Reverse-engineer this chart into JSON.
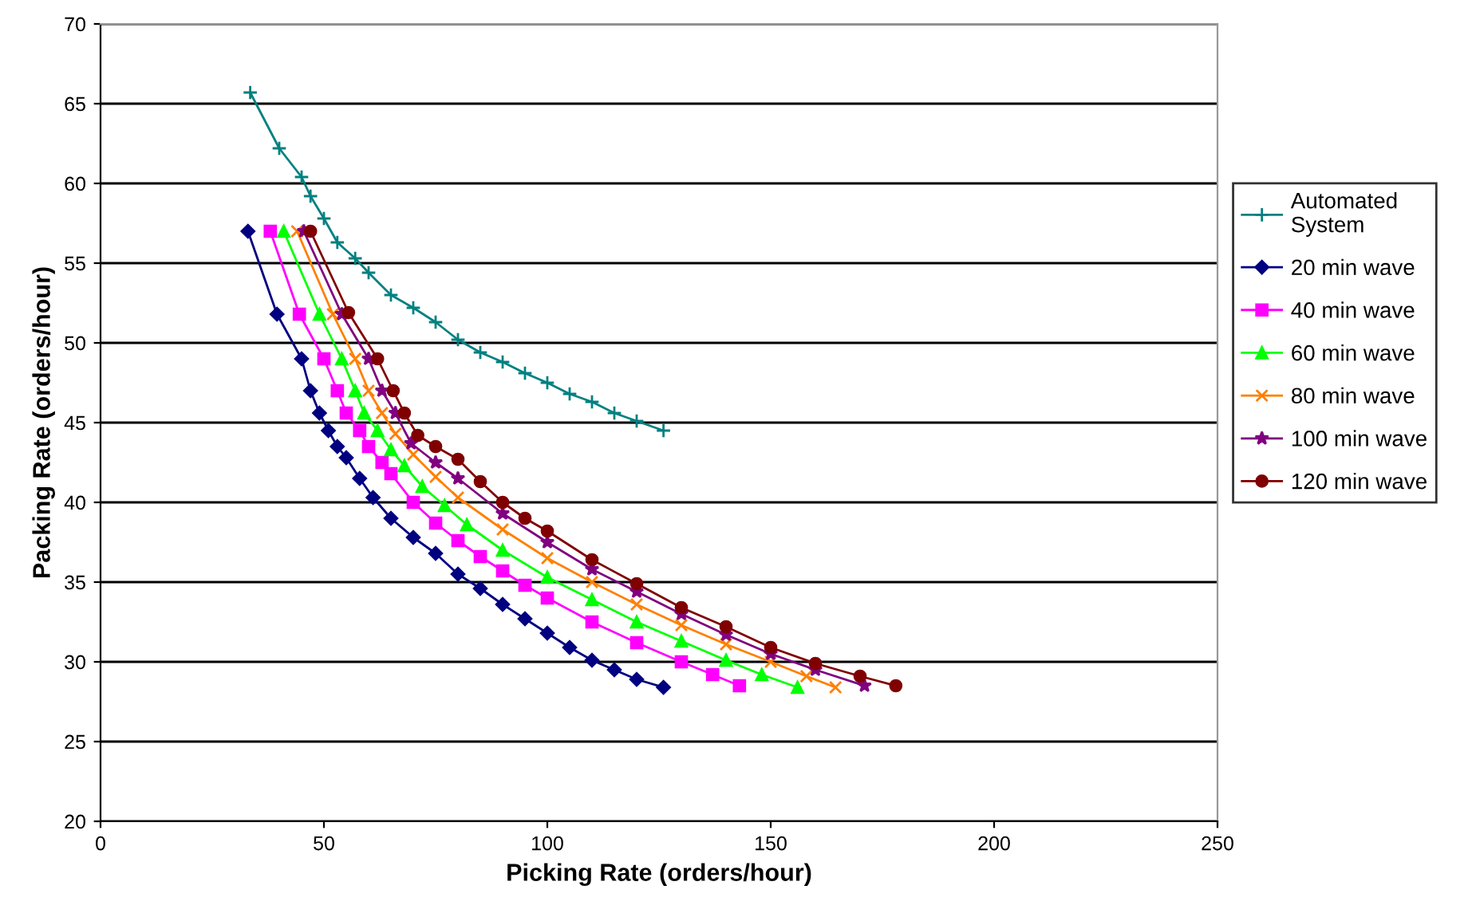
{
  "chart_data": {
    "type": "line",
    "xlabel": "Picking Rate (orders/hour)",
    "ylabel": "Packing Rate (orders/hour)",
    "xlim": [
      0,
      250
    ],
    "xticks": [
      0,
      50,
      100,
      150,
      200,
      250
    ],
    "ylim": [
      20,
      70
    ],
    "yticks": [
      20,
      25,
      30,
      35,
      40,
      45,
      50,
      55,
      60,
      65,
      70
    ],
    "grid": "y",
    "legend": "right",
    "series": [
      {
        "name": "Automated System",
        "color": "#008080",
        "marker": "plus",
        "x": [
          33.5,
          40,
          45,
          47,
          50,
          53,
          57,
          60,
          65,
          70,
          75,
          80,
          85,
          90,
          95,
          100,
          105,
          110,
          115,
          120,
          126
        ],
        "values": [
          65.7,
          62.2,
          60.4,
          59.2,
          57.8,
          56.3,
          55.3,
          54.4,
          53.0,
          52.2,
          51.3,
          50.2,
          49.4,
          48.8,
          48.1,
          47.5,
          46.8,
          46.3,
          45.6,
          45.1,
          44.5
        ]
      },
      {
        "name": "20 min wave",
        "color": "#000080",
        "marker": "diamond",
        "x": [
          33,
          39.5,
          45,
          47,
          49,
          51,
          53,
          55,
          58,
          61,
          65,
          70,
          75,
          80,
          85,
          90,
          95,
          100,
          105,
          110,
          115,
          120,
          126
        ],
        "values": [
          57,
          51.8,
          49,
          47,
          45.6,
          44.5,
          43.5,
          42.8,
          41.5,
          40.3,
          39,
          37.8,
          36.8,
          35.5,
          34.6,
          33.6,
          32.7,
          31.8,
          30.9,
          30.1,
          29.5,
          28.9,
          28.4
        ]
      },
      {
        "name": "40 min wave",
        "color": "#ff00ff",
        "marker": "square",
        "x": [
          38,
          44.5,
          50,
          53,
          55,
          58,
          60,
          63,
          65,
          70,
          75,
          80,
          85,
          90,
          95,
          100,
          110,
          120,
          130,
          137,
          143
        ],
        "values": [
          57,
          51.8,
          49,
          47,
          45.6,
          44.5,
          43.5,
          42.5,
          41.8,
          40,
          38.7,
          37.6,
          36.6,
          35.7,
          34.8,
          34,
          32.5,
          31.2,
          30,
          29.2,
          28.5
        ]
      },
      {
        "name": "60 min wave",
        "color": "#00ff00",
        "marker": "triangle",
        "x": [
          41,
          49,
          54,
          57,
          59,
          62,
          65,
          68,
          72,
          77,
          82,
          90,
          100,
          110,
          120,
          130,
          140,
          148,
          156
        ],
        "values": [
          57,
          51.8,
          49,
          47,
          45.6,
          44.5,
          43.3,
          42.3,
          41,
          39.8,
          38.6,
          37,
          35.3,
          33.9,
          32.5,
          31.3,
          30.1,
          29.2,
          28.4
        ]
      },
      {
        "name": "80 min wave",
        "color": "#ff8000",
        "marker": "cross",
        "x": [
          44,
          52,
          57,
          60,
          63,
          66,
          70,
          75,
          80,
          90,
          100,
          110,
          120,
          130,
          140,
          150,
          158,
          164.5
        ],
        "values": [
          57,
          51.8,
          49,
          47,
          45.6,
          44.3,
          43,
          41.6,
          40.3,
          38.3,
          36.5,
          35,
          33.6,
          32.3,
          31.1,
          30,
          29.1,
          28.4
        ]
      },
      {
        "name": "100 min wave",
        "color": "#800080",
        "marker": "star",
        "x": [
          45.5,
          54,
          60,
          63,
          66,
          69.5,
          75,
          80,
          90,
          100,
          110,
          120,
          130,
          140,
          150,
          160,
          171
        ],
        "values": [
          57,
          51.8,
          49,
          47,
          45.6,
          43.7,
          42.5,
          41.5,
          39.3,
          37.5,
          35.8,
          34.4,
          33,
          31.7,
          30.5,
          29.5,
          28.5
        ]
      },
      {
        "name": "120 min wave",
        "color": "#800000",
        "marker": "circle",
        "x": [
          47,
          55.5,
          62,
          65.5,
          68,
          71,
          75,
          80,
          85,
          90,
          95,
          100,
          110,
          120,
          130,
          140,
          150,
          160,
          170,
          178
        ],
        "values": [
          57,
          51.9,
          49,
          47,
          45.6,
          44.2,
          43.5,
          42.7,
          41.3,
          40,
          39,
          38.2,
          36.4,
          34.9,
          33.4,
          32.2,
          30.9,
          29.9,
          29.1,
          28.5
        ]
      }
    ]
  }
}
